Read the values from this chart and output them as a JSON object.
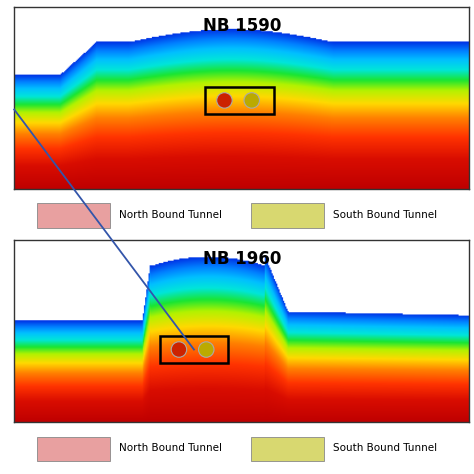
{
  "title1": "NB 1590",
  "title2": "NB 1960",
  "legend1_label1": "North Bound Tunnel",
  "legend1_label2": "South Bound Tunnel",
  "legend2_label1": "North Bound Tunnel",
  "legend2_label2": "South Bound Tunnel",
  "legend_color1": "#e8a0a0",
  "legend_color2": "#d8d870",
  "bg_color": "#ffffff",
  "border_color": "#333333",
  "arrow_color": "#3355aa",
  "panel_bg": "#ffffff",
  "colors_bottom_top": [
    [
      0.0,
      [
        0.75,
        0.0,
        0.0
      ]
    ],
    [
      0.2,
      [
        0.85,
        0.05,
        0.0
      ]
    ],
    [
      0.35,
      [
        1.0,
        0.2,
        0.0
      ]
    ],
    [
      0.48,
      [
        1.0,
        0.5,
        0.0
      ]
    ],
    [
      0.58,
      [
        1.0,
        0.85,
        0.0
      ]
    ],
    [
      0.67,
      [
        0.7,
        0.95,
        0.0
      ]
    ],
    [
      0.74,
      [
        0.1,
        0.9,
        0.2
      ]
    ],
    [
      0.81,
      [
        0.0,
        0.9,
        0.85
      ]
    ],
    [
      0.88,
      [
        0.0,
        0.75,
        1.0
      ]
    ],
    [
      0.94,
      [
        0.0,
        0.5,
        1.0
      ]
    ],
    [
      1.0,
      [
        0.0,
        0.2,
        0.9
      ]
    ]
  ]
}
